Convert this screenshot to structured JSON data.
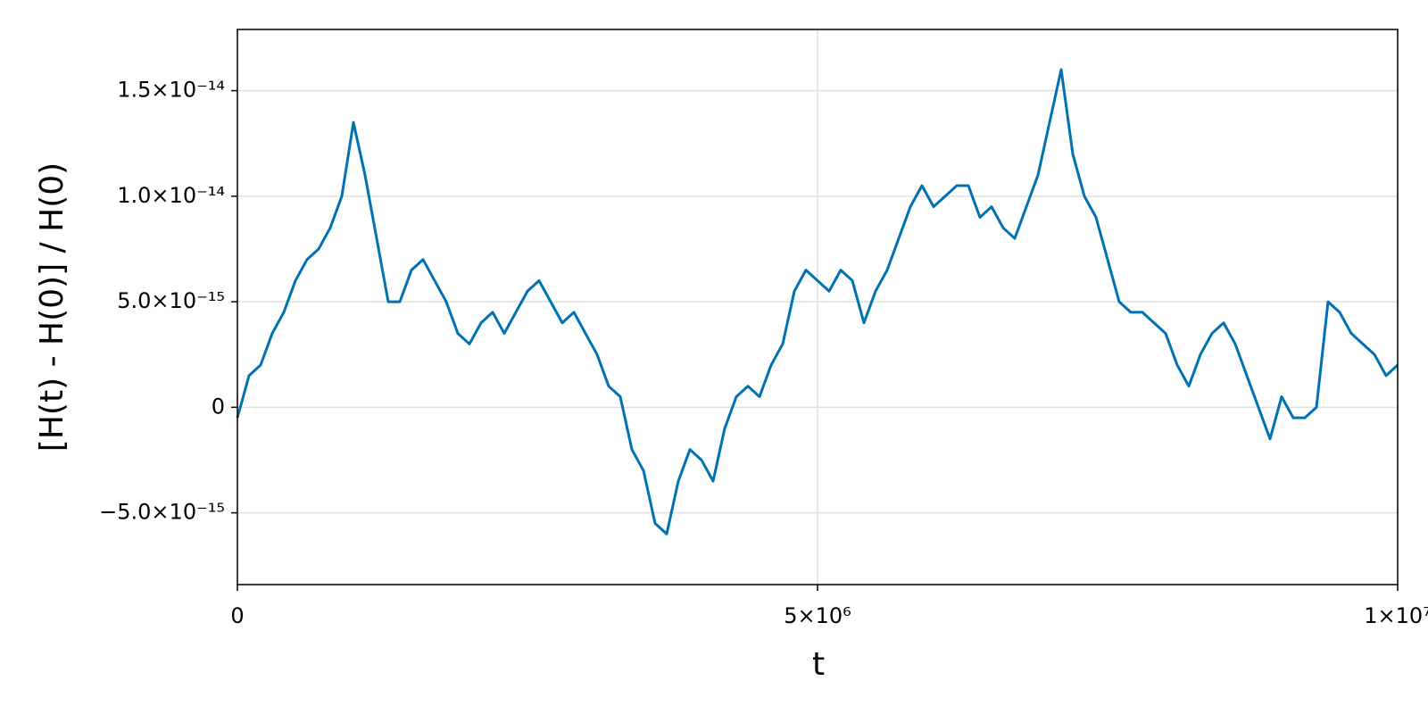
{
  "chart_data": {
    "type": "line",
    "xlabel": "t",
    "ylabel": "[H(t) - H(0)] / H(0)",
    "x": [
      0,
      100000,
      200000,
      300000,
      400000,
      500000,
      600000,
      700000,
      800000,
      900000,
      1000000,
      1100000,
      1200000,
      1300000,
      1400000,
      1500000,
      1600000,
      1700000,
      1800000,
      1900000,
      2000000,
      2100000,
      2200000,
      2300000,
      2400000,
      2500000,
      2600000,
      2700000,
      2800000,
      2900000,
      3000000,
      3100000,
      3200000,
      3300000,
      3400000,
      3500000,
      3600000,
      3700000,
      3800000,
      3900000,
      4000000,
      4100000,
      4200000,
      4300000,
      4400000,
      4500000,
      4600000,
      4700000,
      4800000,
      4900000,
      5000000,
      5100000,
      5200000,
      5300000,
      5400000,
      5500000,
      5600000,
      5700000,
      5800000,
      5900000,
      6000000,
      6100000,
      6200000,
      6300000,
      6400000,
      6500000,
      6600000,
      6700000,
      6800000,
      6900000,
      7000000,
      7100000,
      7200000,
      7300000,
      7400000,
      7500000,
      7600000,
      7700000,
      7800000,
      7900000,
      8000000,
      8100000,
      8200000,
      8300000,
      8400000,
      8500000,
      8600000,
      8700000,
      8800000,
      8900000,
      9000000,
      9100000,
      9200000,
      9300000,
      9400000,
      9500000,
      9600000,
      9700000,
      9800000,
      9900000,
      10000000
    ],
    "series": [
      {
        "color": "#0072b2",
        "values": [
          -5e-16,
          1.5e-15,
          2e-15,
          3.5e-15,
          4.5e-15,
          6e-15,
          7e-15,
          7.5e-15,
          8.5e-15,
          1e-14,
          1.35e-14,
          1.1e-14,
          8e-15,
          5e-15,
          5e-15,
          6.5e-15,
          7e-15,
          6e-15,
          5e-15,
          3.5e-15,
          3e-15,
          4e-15,
          4.5e-15,
          3.5e-15,
          4.5e-15,
          5.5e-15,
          6e-15,
          5e-15,
          4e-15,
          4.5e-15,
          3.5e-15,
          2.5e-15,
          1e-15,
          5e-16,
          -2e-15,
          -3e-15,
          -5.5e-15,
          -6e-15,
          -3.5e-15,
          -2e-15,
          -2.5e-15,
          -3.5e-15,
          -1e-15,
          5e-16,
          1e-15,
          5e-16,
          2e-15,
          3e-15,
          5.5e-15,
          6.5e-15,
          6e-15,
          5.5e-15,
          6.5e-15,
          6e-15,
          4e-15,
          5.5e-15,
          6.5e-15,
          8e-15,
          9.5e-15,
          1.05e-14,
          9.5e-15,
          1e-14,
          1.05e-14,
          1.05e-14,
          9e-15,
          9.5e-15,
          8.5e-15,
          8e-15,
          9.5e-15,
          1.1e-14,
          1.35e-14,
          1.6e-14,
          1.2e-14,
          1e-14,
          9e-15,
          7e-15,
          5e-15,
          4.5e-15,
          4.5e-15,
          4e-15,
          3.5e-15,
          2e-15,
          1e-15,
          2.5e-15,
          3.5e-15,
          4e-15,
          3e-15,
          1.5e-15,
          0.0,
          -1.5e-15,
          5e-16,
          -5e-16,
          -5e-16,
          0.0,
          5e-15,
          4.5e-15,
          3.5e-15,
          3e-15,
          2.5e-15,
          1.5e-15,
          2e-15
        ]
      }
    ],
    "xlim": [
      0,
      10000000
    ],
    "xticks": [
      0,
      {
        "value": 5000000,
        "label": "5×10⁶"
      },
      {
        "value": 10000000,
        "label": "1×10⁷"
      }
    ],
    "ylim": [
      -8.4e-15,
      1.79e-14
    ],
    "yticks": [
      {
        "value": -5e-15,
        "label": "−5.0×10⁻¹⁵"
      },
      0,
      {
        "value": 5e-15,
        "label": "5.0×10⁻¹⁵"
      },
      {
        "value": 1e-14,
        "label": "1.0×10⁻¹⁴"
      },
      {
        "value": 1.5e-14,
        "label": "1.5×10⁻¹⁴"
      }
    ],
    "grid": true
  }
}
